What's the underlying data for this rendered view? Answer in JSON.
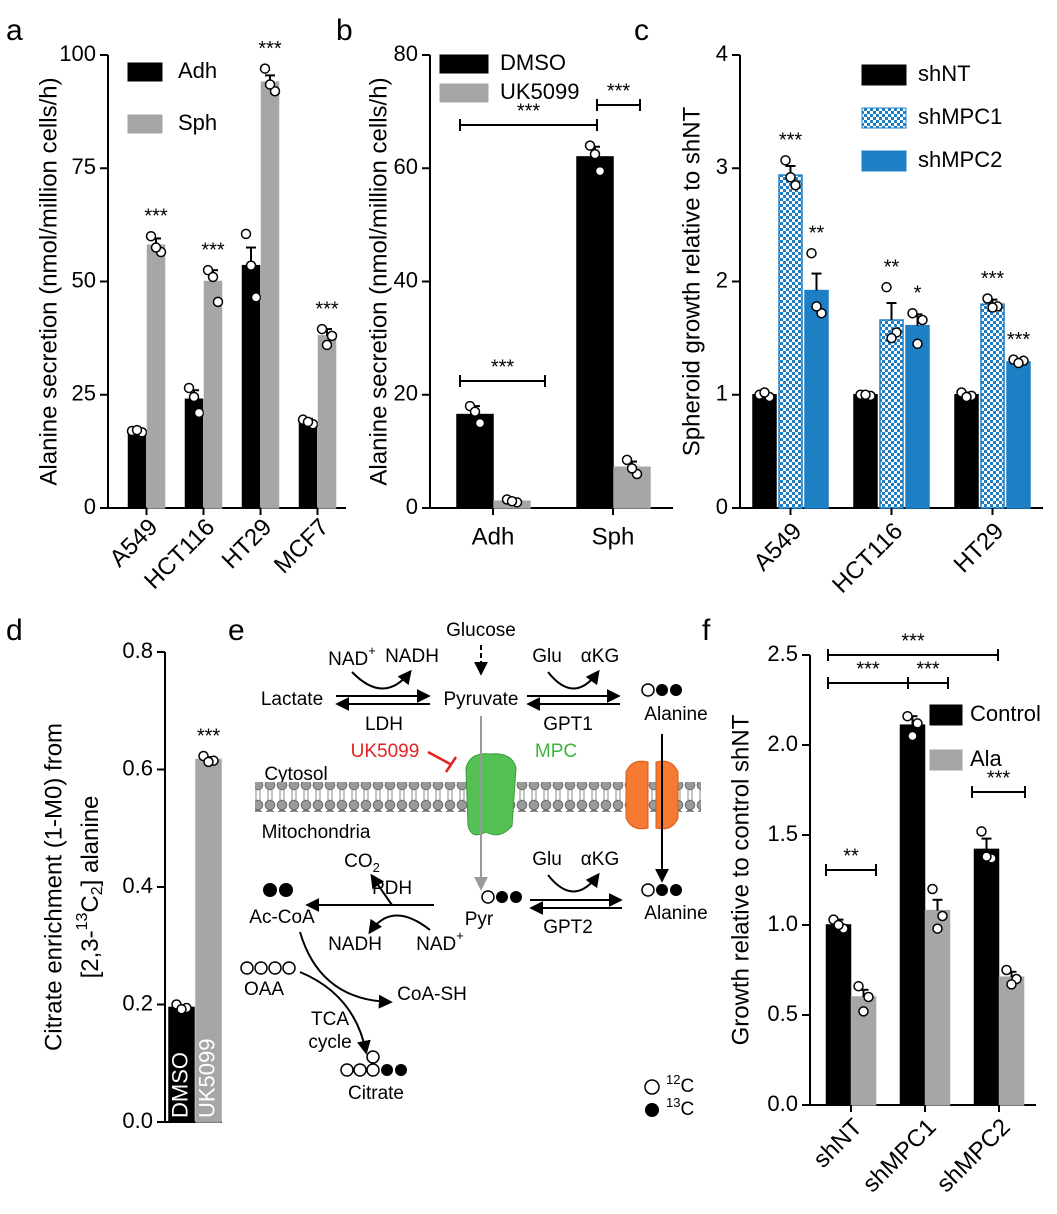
{
  "chart_data": [
    {
      "type": "bar",
      "panel": "a",
      "ylabel": "Alanine secretion (nmol/million cells/h)",
      "categories": [
        "A549",
        "HCT116",
        "HT29",
        "MCF7"
      ],
      "series": [
        {
          "name": "Adh",
          "color": "#000000",
          "values": [
            17,
            24,
            53.5,
            19
          ],
          "errors": [
            0.5,
            2,
            4,
            0.7
          ],
          "points": [
            [
              17,
              16.7,
              17.2
            ],
            [
              26.5,
              21,
              24.5
            ],
            [
              60.5,
              46.5,
              53.5
            ],
            [
              19.5,
              18.5,
              19
            ]
          ]
        },
        {
          "name": "Sph",
          "color": "#a6a6a6",
          "values": [
            58,
            50,
            94,
            38
          ],
          "errors": [
            1.5,
            2.5,
            1.5,
            1.5
          ],
          "points": [
            [
              60,
              56.5,
              57.5
            ],
            [
              52.5,
              45.5,
              51
            ],
            [
              97,
              92,
              93.5
            ],
            [
              39.5,
              38,
              36
            ]
          ],
          "annotations": [
            "***",
            "***",
            "***",
            "***"
          ]
        }
      ],
      "ylim": [
        0,
        100
      ],
      "yticks": [
        0,
        25,
        50,
        75,
        100
      ],
      "legend": "upper left"
    },
    {
      "type": "bar",
      "panel": "b",
      "ylabel": "Alanine secretion (nmol/million cells/h)",
      "categories": [
        "Adh",
        "Sph"
      ],
      "series": [
        {
          "name": "DMSO",
          "color": "#000000",
          "values": [
            16.5,
            62
          ],
          "errors": [
            1.5,
            1.8
          ],
          "points": [
            [
              18,
              15,
              17
            ],
            [
              64,
              59.5,
              62.5
            ]
          ]
        },
        {
          "name": "UK5099",
          "color": "#a6a6a6",
          "values": [
            1.2,
            7.2
          ],
          "errors": [
            0.2,
            1
          ],
          "points": [
            [
              1.5,
              1,
              1.2
            ],
            [
              8.5,
              6,
              7
            ]
          ]
        }
      ],
      "brackets": [
        "***",
        "***",
        "***"
      ],
      "ylim": [
        0,
        80
      ],
      "yticks": [
        0,
        20,
        40,
        60,
        80
      ],
      "legend": "upper left"
    },
    {
      "type": "bar",
      "panel": "c",
      "ylabel": "Spheroid growth relative to shNT",
      "categories": [
        "A549",
        "HCT116",
        "HT29"
      ],
      "series": [
        {
          "name": "shNT",
          "color": "#000000",
          "values": [
            1,
            1,
            1
          ],
          "errors": [
            0.02,
            0.01,
            0.02
          ],
          "points": [
            [
              1,
              0.98,
              1.02
            ],
            [
              1,
              0.99,
              1
            ],
            [
              1.02,
              0.99,
              0.98
            ]
          ]
        },
        {
          "name": "shMPC1",
          "color": "#1f7fc4",
          "hatch": "checkered",
          "values": [
            2.94,
            1.66,
            1.8
          ],
          "errors": [
            0.08,
            0.15,
            0.04
          ],
          "points": [
            [
              3.07,
              2.85,
              2.92
            ],
            [
              1.95,
              1.55,
              1.5
            ],
            [
              1.85,
              1.78,
              1.77
            ]
          ],
          "annotations": [
            "***",
            "**",
            "***"
          ]
        },
        {
          "name": "shMPC2",
          "color": "#1f7fc4",
          "values": [
            1.92,
            1.61,
            1.29
          ],
          "errors": [
            0.15,
            0.1,
            0.02
          ],
          "points": [
            [
              2.25,
              1.72,
              1.78
            ],
            [
              1.72,
              1.66,
              1.45
            ],
            [
              1.31,
              1.3,
              1.28
            ]
          ],
          "annotations": [
            "**",
            "*",
            "***"
          ]
        }
      ],
      "ylim": [
        0,
        4
      ],
      "yticks": [
        0,
        1,
        2,
        3,
        4
      ],
      "legend": "upper right"
    },
    {
      "type": "bar",
      "panel": "d",
      "ylabel": "Citrate enrichment (1-M0) from",
      "ylabel_line2": {
        "pre": "[2,3-",
        "sup": "13",
        "mid": "C",
        "sub": "2",
        "post": "] alanine"
      },
      "categories": [
        "DMSO",
        "UK5099"
      ],
      "values": [
        0.195,
        0.617
      ],
      "colors": [
        "#000000",
        "#a6a6a6"
      ],
      "errors": [
        0.004,
        0.004
      ],
      "points": [
        [
          0.2,
          0.194,
          0.192
        ],
        [
          0.623,
          0.615,
          0.613
        ]
      ],
      "annotations": [
        null,
        "***"
      ],
      "ylim": [
        0,
        0.8
      ],
      "yticks": [
        {
          "value": 0,
          "label": "0.0"
        },
        0.2,
        0.4,
        0.6,
        0.8
      ]
    },
    {
      "type": "bar",
      "panel": "f",
      "ylabel": "Growth relative to control shNT",
      "categories": [
        "shNT",
        "shMPC1",
        "shMPC2"
      ],
      "series": [
        {
          "name": "Control",
          "color": "#000000",
          "values": [
            1,
            2.11,
            1.42
          ],
          "errors": [
            0.03,
            0.05,
            0.06
          ],
          "points": [
            [
              1.03,
              0.98,
              1
            ],
            [
              2.16,
              2.12,
              2.05
            ],
            [
              1.52,
              1.37,
              1.38
            ]
          ]
        },
        {
          "name": "Ala",
          "color": "#a6a6a6",
          "values": [
            0.6,
            1.08,
            0.71
          ],
          "errors": [
            0.04,
            0.06,
            0.03
          ],
          "points": [
            [
              0.66,
              0.6,
              0.52
            ],
            [
              1.2,
              1.05,
              0.98
            ],
            [
              0.75,
              0.7,
              0.67
            ]
          ]
        }
      ],
      "brackets": [
        "***",
        "***",
        "***",
        "***",
        "**"
      ],
      "ylim": [
        0,
        2.5
      ],
      "yticks": [
        {
          "value": 0,
          "label": "0.0"
        },
        0.5,
        {
          "value": 1,
          "label": "1.0"
        },
        1.5,
        {
          "value": 2,
          "label": "2.0"
        },
        2.5
      ],
      "legend": "upper right"
    }
  ],
  "diagram": {
    "panel": "e",
    "glucose": "Glucose",
    "nad1": {
      "text": "NAD",
      "sup": "+"
    },
    "nadh1": "NADH",
    "lactate": "Lactate",
    "pyruvate": "Pyruvate",
    "ldh": "LDH",
    "glu1": "Glu",
    "akg1": "αKG",
    "gpt1": "GPT1",
    "alanine1": "Alanine",
    "uk5099": "UK5099",
    "mpc": "MPC",
    "cytosol": "Cytosol",
    "mito": "Mitochondria",
    "co2": {
      "text": "CO",
      "sub": "2"
    },
    "pdh": "PDH",
    "accoa": "Ac-CoA",
    "nadh2": "NADH",
    "nad2": {
      "text": "NAD",
      "sup": "+"
    },
    "pyr": "Pyr",
    "glu2": "Glu",
    "akg2": "αKG",
    "gpt2": "GPT2",
    "alanine2": "Alanine",
    "oaa": "OAA",
    "coash": "CoA-SH",
    "tca": "TCA",
    "cycle": "cycle",
    "citrate": "Citrate",
    "c12": {
      "sup": "12",
      "text": "C"
    },
    "c13": {
      "sup": "13",
      "text": "C"
    }
  }
}
